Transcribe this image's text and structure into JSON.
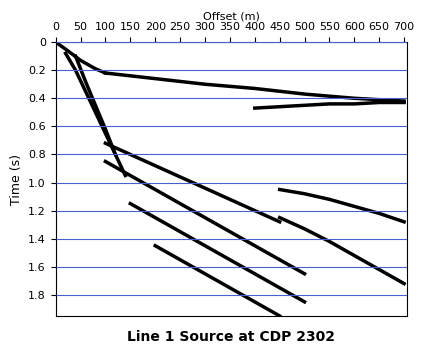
{
  "chart_data": {
    "type": "line",
    "title": "Line 1 Source at CDP 2302",
    "x_label": "Offset (m)",
    "y_label": "Time (s)",
    "xlim": [
      0,
      705
    ],
    "ylim": [
      1.95,
      0
    ],
    "xticks": [
      0,
      50,
      100,
      150,
      200,
      250,
      300,
      350,
      400,
      450,
      500,
      550,
      600,
      650,
      700
    ],
    "yticks": [
      0,
      0.2,
      0.4,
      0.6,
      0.8,
      1.0,
      1.2,
      1.4,
      1.6,
      1.8
    ],
    "grid": "y",
    "color": "black",
    "series": [
      {
        "x": [
          0,
          20,
          50,
          80,
          100
        ],
        "values": [
          0.0,
          0.05,
          0.13,
          0.19,
          0.22
        ]
      },
      {
        "x": [
          100,
          200,
          300,
          400,
          500,
          600,
          700
        ],
        "values": [
          0.22,
          0.26,
          0.3,
          0.33,
          0.37,
          0.4,
          0.42
        ]
      },
      {
        "x": [
          400,
          450,
          500,
          550,
          600,
          650,
          700
        ],
        "values": [
          0.47,
          0.46,
          0.45,
          0.44,
          0.44,
          0.43,
          0.43
        ]
      },
      {
        "x": [
          20,
          40,
          60,
          80,
          100,
          120
        ],
        "values": [
          0.08,
          0.2,
          0.35,
          0.5,
          0.65,
          0.8
        ]
      },
      {
        "x": [
          40,
          60,
          80,
          100,
          120,
          140
        ],
        "values": [
          0.1,
          0.28,
          0.45,
          0.62,
          0.8,
          0.95
        ]
      },
      {
        "x": [
          100,
          150,
          200,
          250,
          300,
          350,
          400,
          450
        ],
        "values": [
          0.72,
          0.8,
          0.88,
          0.96,
          1.04,
          1.12,
          1.2,
          1.28
        ]
      },
      {
        "x": [
          100,
          150,
          200,
          250,
          300,
          350,
          400,
          450,
          500
        ],
        "values": [
          0.85,
          0.95,
          1.05,
          1.15,
          1.25,
          1.35,
          1.45,
          1.55,
          1.65
        ]
      },
      {
        "x": [
          150,
          200,
          250,
          300,
          350,
          400,
          450,
          500
        ],
        "values": [
          1.15,
          1.25,
          1.35,
          1.45,
          1.55,
          1.65,
          1.75,
          1.85
        ]
      },
      {
        "x": [
          200,
          250,
          300,
          350,
          400,
          450
        ],
        "values": [
          1.45,
          1.55,
          1.65,
          1.75,
          1.85,
          1.95
        ]
      },
      {
        "x": [
          450,
          500,
          550,
          600,
          650,
          700
        ],
        "values": [
          1.05,
          1.08,
          1.12,
          1.17,
          1.22,
          1.28
        ]
      },
      {
        "x": [
          450,
          500,
          550,
          600,
          650,
          700
        ],
        "values": [
          1.25,
          1.33,
          1.42,
          1.52,
          1.62,
          1.72
        ]
      }
    ]
  }
}
